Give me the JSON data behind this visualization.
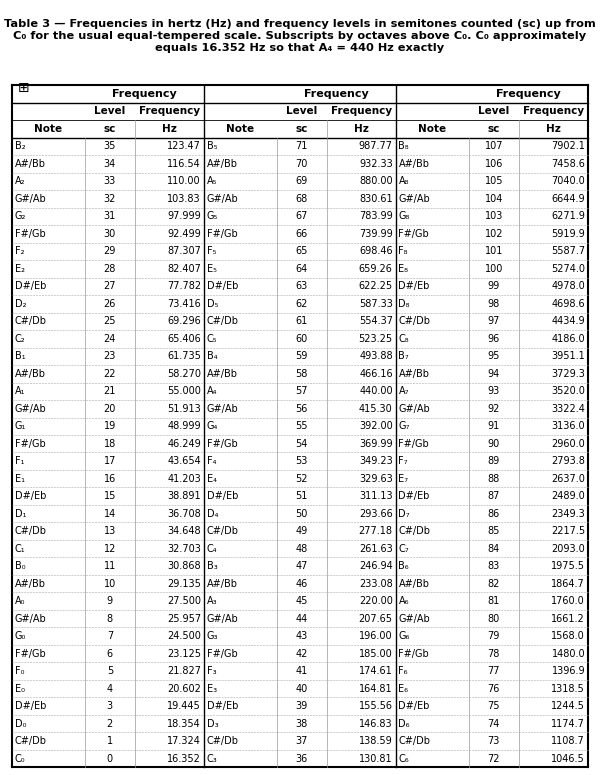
{
  "title_line1": "Table 3 — Frequencies in hertz (Hz) and frequency levels in semitones counted (sc) up from",
  "title_line2": "C₀ for the usual equal-tempered scale. Subscripts by octaves above C₀. C₀ approximately",
  "title_line3": "equals 16.352 Hz so that A₄ = 440 Hz exactly",
  "col1": [
    [
      "B₂",
      "35",
      "123.47"
    ],
    [
      "A#/Bb",
      "34",
      "116.54"
    ],
    [
      "A₂",
      "33",
      "110.00"
    ],
    [
      "G#/Ab",
      "32",
      "103.83"
    ],
    [
      "G₂",
      "31",
      "97.999"
    ],
    [
      "F#/Gb",
      "30",
      "92.499"
    ],
    [
      "F₂",
      "29",
      "87.307"
    ],
    [
      "E₂",
      "28",
      "82.407"
    ],
    [
      "D#/Eb",
      "27",
      "77.782"
    ],
    [
      "D₂",
      "26",
      "73.416"
    ],
    [
      "C#/Db",
      "25",
      "69.296"
    ],
    [
      "C₂",
      "24",
      "65.406"
    ],
    [
      "B₁",
      "23",
      "61.735"
    ],
    [
      "A#/Bb",
      "22",
      "58.270"
    ],
    [
      "A₁",
      "21",
      "55.000"
    ],
    [
      "G#/Ab",
      "20",
      "51.913"
    ],
    [
      "G₁",
      "19",
      "48.999"
    ],
    [
      "F#/Gb",
      "18",
      "46.249"
    ],
    [
      "F₁",
      "17",
      "43.654"
    ],
    [
      "E₁",
      "16",
      "41.203"
    ],
    [
      "D#/Eb",
      "15",
      "38.891"
    ],
    [
      "D₁",
      "14",
      "36.708"
    ],
    [
      "C#/Db",
      "13",
      "34.648"
    ],
    [
      "C₁",
      "12",
      "32.703"
    ],
    [
      "B₀",
      "11",
      "30.868"
    ],
    [
      "A#/Bb",
      "10",
      "29.135"
    ],
    [
      "A₀",
      "9",
      "27.500"
    ],
    [
      "G#/Ab",
      "8",
      "25.957"
    ],
    [
      "G₀",
      "7",
      "24.500"
    ],
    [
      "F#/Gb",
      "6",
      "23.125"
    ],
    [
      "F₀",
      "5",
      "21.827"
    ],
    [
      "E₀",
      "4",
      "20.602"
    ],
    [
      "D#/Eb",
      "3",
      "19.445"
    ],
    [
      "D₀",
      "2",
      "18.354"
    ],
    [
      "C#/Db",
      "1",
      "17.324"
    ],
    [
      "C₀",
      "0",
      "16.352"
    ]
  ],
  "col2": [
    [
      "B₅",
      "71",
      "987.77"
    ],
    [
      "A#/Bb",
      "70",
      "932.33"
    ],
    [
      "A₅",
      "69",
      "880.00"
    ],
    [
      "G#/Ab",
      "68",
      "830.61"
    ],
    [
      "G₅",
      "67",
      "783.99"
    ],
    [
      "F#/Gb",
      "66",
      "739.99"
    ],
    [
      "F₅",
      "65",
      "698.46"
    ],
    [
      "E₅",
      "64",
      "659.26"
    ],
    [
      "D#/Eb",
      "63",
      "622.25"
    ],
    [
      "D₅",
      "62",
      "587.33"
    ],
    [
      "C#/Db",
      "61",
      "554.37"
    ],
    [
      "C₅",
      "60",
      "523.25"
    ],
    [
      "B₄",
      "59",
      "493.88"
    ],
    [
      "A#/Bb",
      "58",
      "466.16"
    ],
    [
      "A₄",
      "57",
      "440.00"
    ],
    [
      "G#/Ab",
      "56",
      "415.30"
    ],
    [
      "G₄",
      "55",
      "392.00"
    ],
    [
      "F#/Gb",
      "54",
      "369.99"
    ],
    [
      "F₄",
      "53",
      "349.23"
    ],
    [
      "E₄",
      "52",
      "329.63"
    ],
    [
      "D#/Eb",
      "51",
      "311.13"
    ],
    [
      "D₄",
      "50",
      "293.66"
    ],
    [
      "C#/Db",
      "49",
      "277.18"
    ],
    [
      "C₄",
      "48",
      "261.63"
    ],
    [
      "B₃",
      "47",
      "246.94"
    ],
    [
      "A#/Bb",
      "46",
      "233.08"
    ],
    [
      "A₃",
      "45",
      "220.00"
    ],
    [
      "G#/Ab",
      "44",
      "207.65"
    ],
    [
      "G₃",
      "43",
      "196.00"
    ],
    [
      "F#/Gb",
      "42",
      "185.00"
    ],
    [
      "F₃",
      "41",
      "174.61"
    ],
    [
      "E₃",
      "40",
      "164.81"
    ],
    [
      "D#/Eb",
      "39",
      "155.56"
    ],
    [
      "D₃",
      "38",
      "146.83"
    ],
    [
      "C#/Db",
      "37",
      "138.59"
    ],
    [
      "C₃",
      "36",
      "130.81"
    ]
  ],
  "col3": [
    [
      "B₈",
      "107",
      "7902.1"
    ],
    [
      "A#/Bb",
      "106",
      "7458.6"
    ],
    [
      "A₈",
      "105",
      "7040.0"
    ],
    [
      "G#/Ab",
      "104",
      "6644.9"
    ],
    [
      "G₈",
      "103",
      "6271.9"
    ],
    [
      "F#/Gb",
      "102",
      "5919.9"
    ],
    [
      "F₈",
      "101",
      "5587.7"
    ],
    [
      "E₈",
      "100",
      "5274.0"
    ],
    [
      "D#/Eb",
      "99",
      "4978.0"
    ],
    [
      "D₈",
      "98",
      "4698.6"
    ],
    [
      "C#/Db",
      "97",
      "4434.9"
    ],
    [
      "C₈",
      "96",
      "4186.0"
    ],
    [
      "B₇",
      "95",
      "3951.1"
    ],
    [
      "A#/Bb",
      "94",
      "3729.3"
    ],
    [
      "A₇",
      "93",
      "3520.0"
    ],
    [
      "G#/Ab",
      "92",
      "3322.4"
    ],
    [
      "G₇",
      "91",
      "3136.0"
    ],
    [
      "F#/Gb",
      "90",
      "2960.0"
    ],
    [
      "F₇",
      "89",
      "2793.8"
    ],
    [
      "E₇",
      "88",
      "2637.0"
    ],
    [
      "D#/Eb",
      "87",
      "2489.0"
    ],
    [
      "D₇",
      "86",
      "2349.3"
    ],
    [
      "C#/Db",
      "85",
      "2217.5"
    ],
    [
      "C₇",
      "84",
      "2093.0"
    ],
    [
      "B₆",
      "83",
      "1975.5"
    ],
    [
      "A#/Bb",
      "82",
      "1864.7"
    ],
    [
      "A₆",
      "81",
      "1760.0"
    ],
    [
      "G#/Ab",
      "80",
      "1661.2"
    ],
    [
      "G₆",
      "79",
      "1568.0"
    ],
    [
      "F#/Gb",
      "78",
      "1480.0"
    ],
    [
      "F₆",
      "77",
      "1396.9"
    ],
    [
      "E₆",
      "76",
      "1318.5"
    ],
    [
      "D#/Eb",
      "75",
      "1244.5"
    ],
    [
      "D₆",
      "74",
      "1174.7"
    ],
    [
      "C#/Db",
      "73",
      "1108.7"
    ],
    [
      "C₆",
      "72",
      "1046.5"
    ]
  ]
}
